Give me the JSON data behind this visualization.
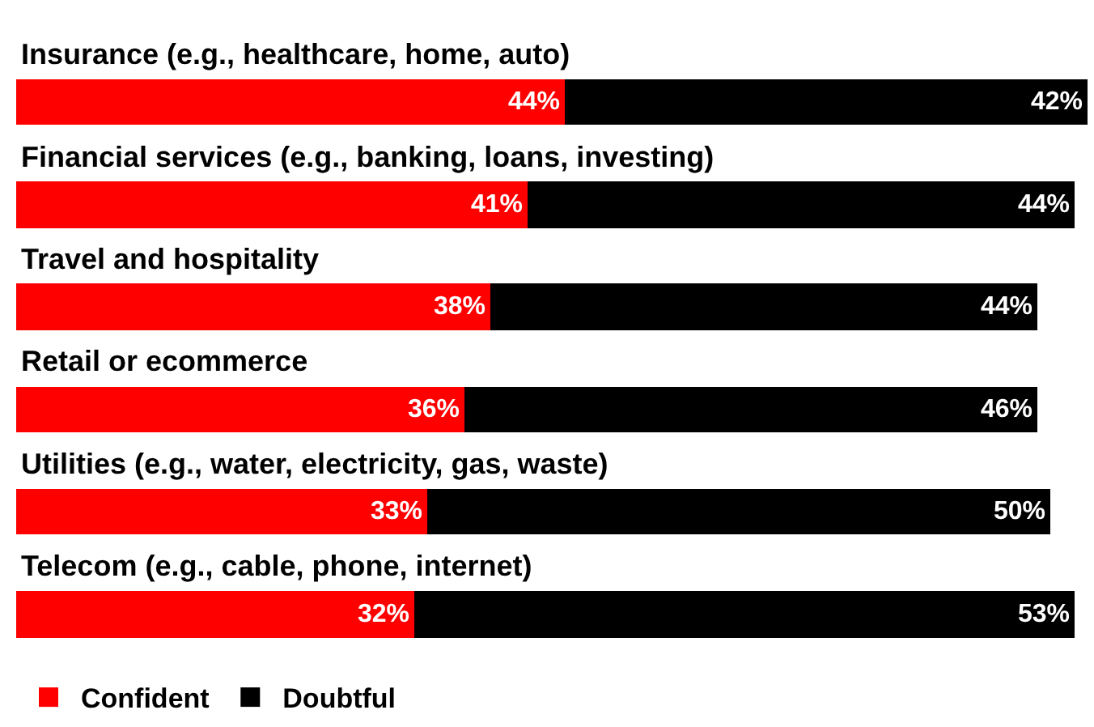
{
  "chart_data": {
    "type": "bar",
    "orientation": "horizontal",
    "stacked": true,
    "legend": "bottom left",
    "tick_labels": "y",
    "categories": [
      "Insurance (e.g., healthcare, home, auto)",
      "Financial services (e.g., banking, loans, investing)",
      "Travel and hospitality",
      "Retail or ecommerce",
      "Utilities (e.g., water, electricity, gas, waste)",
      "Telecom (e.g., cable, phone, internet)"
    ],
    "series": [
      {
        "name": "Confident",
        "color": "#ff0000",
        "values": [
          44,
          41,
          38,
          36,
          33,
          32
        ],
        "value_labels": [
          "44%",
          "41%",
          "38%",
          "36%",
          "33%",
          "32%"
        ]
      },
      {
        "name": "Doubtful",
        "color": "#000000",
        "values": [
          42,
          44,
          44,
          46,
          50,
          53
        ],
        "value_labels": [
          "42%",
          "44%",
          "44%",
          "46%",
          "50%",
          "53%"
        ]
      }
    ]
  }
}
